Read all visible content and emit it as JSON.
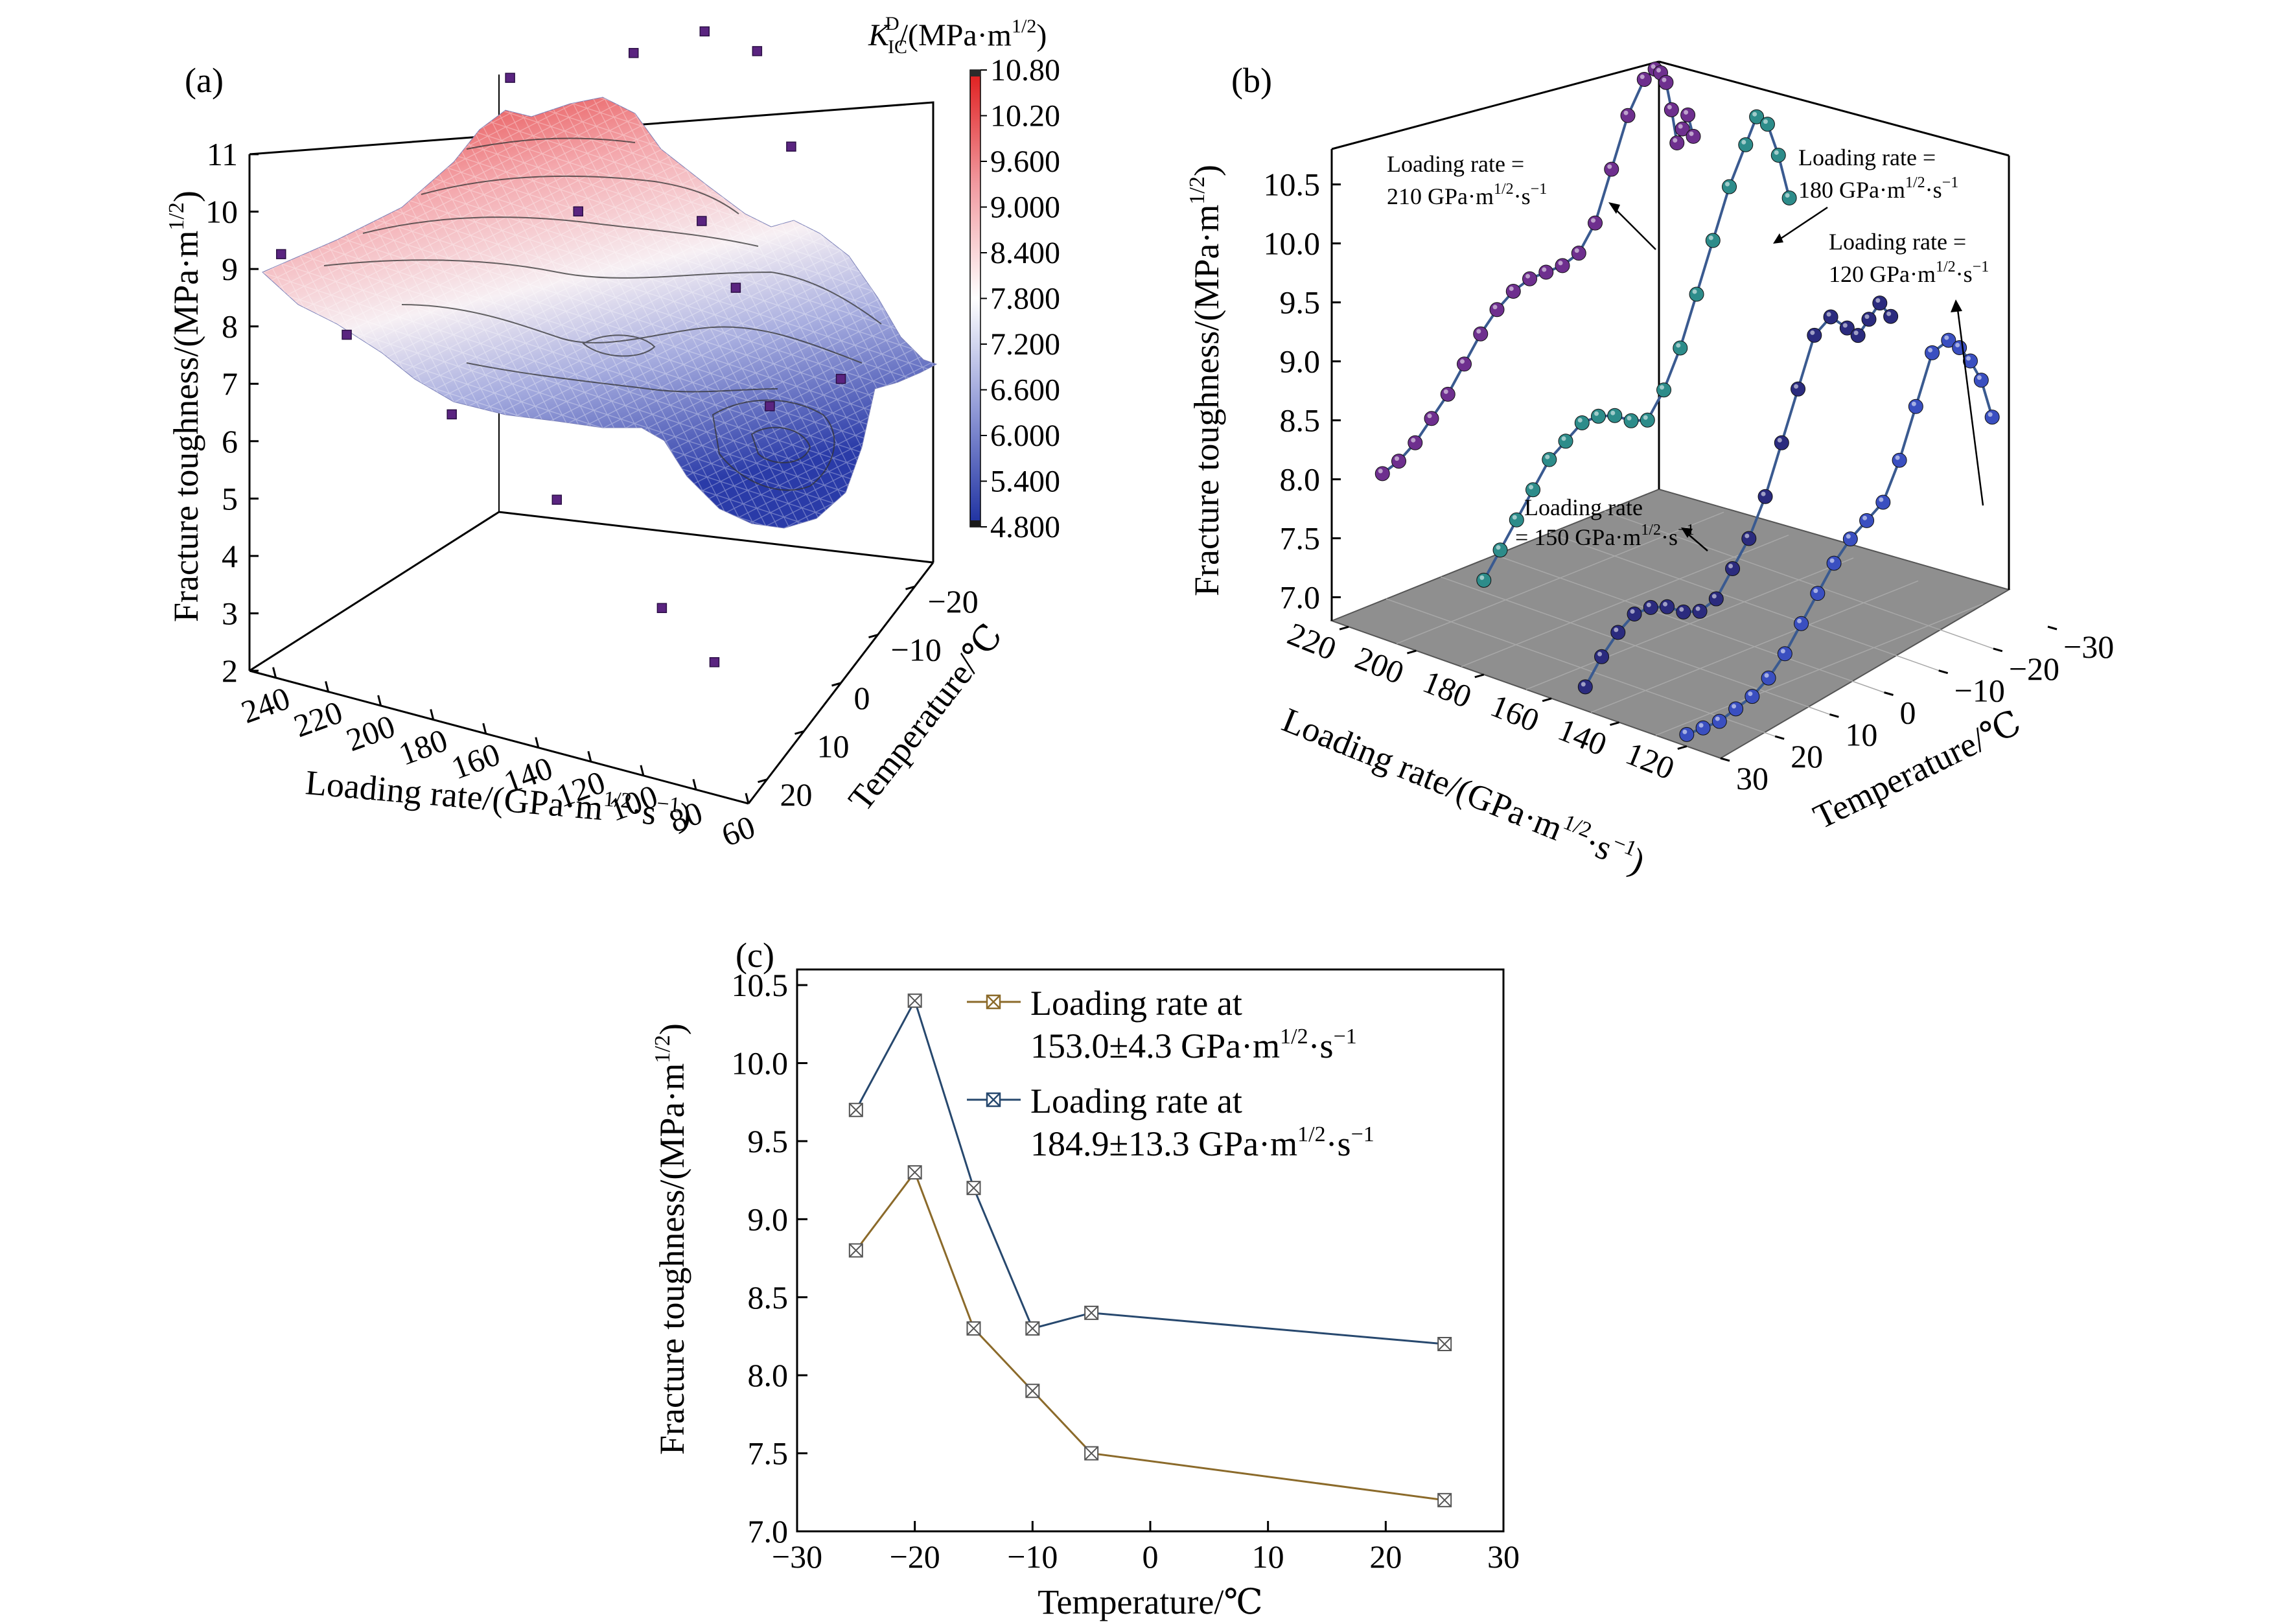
{
  "chart_data": [
    {
      "panel": "(a)",
      "type": "surface3d",
      "xlabel": "Loading rate/(GPa·m^1/2·s^−1)",
      "ylabel": "Temperature/℃",
      "zlabel": "Fracture toughness/(MPa·m^1/2)",
      "x_ticks": [
        "240",
        "220",
        "200",
        "180",
        "160",
        "140",
        "120",
        "100",
        "80",
        "60"
      ],
      "y_ticks": [
        "−20",
        "−10",
        "0",
        "10",
        "20"
      ],
      "z_ticks": [
        "2",
        "3",
        "4",
        "5",
        "6",
        "7",
        "8",
        "9",
        "10",
        "11"
      ],
      "xlim": [
        60,
        250
      ],
      "ylim": [
        -25,
        25
      ],
      "zlim": [
        2,
        11
      ],
      "colorbar": {
        "title": "K_IC^D/(MPa·m^1/2)",
        "ticks": [
          "10.80",
          "10.20",
          "9.600",
          "9.000",
          "8.400",
          "7.800",
          "7.200",
          "6.600",
          "6.000",
          "5.400",
          "4.800"
        ],
        "colors": [
          "#e02020",
          "#f6c3c6",
          "#ffffff",
          "#bfc3e6",
          "#2238a8"
        ]
      },
      "points": [
        {
          "x": 245,
          "y": 20,
          "z": 8.9
        },
        {
          "x": 220,
          "y": 20,
          "z": 7.8
        },
        {
          "x": 180,
          "y": 20,
          "z": 6.9
        },
        {
          "x": 140,
          "y": 20,
          "z": 5.9
        },
        {
          "x": 100,
          "y": 20,
          "z": 4.5
        },
        {
          "x": 80,
          "y": 20,
          "z": 3.8
        },
        {
          "x": 200,
          "y": -10,
          "z": 10.0
        },
        {
          "x": 160,
          "y": -15,
          "z": 10.5
        },
        {
          "x": 140,
          "y": -20,
          "z": 10.7
        },
        {
          "x": 120,
          "y": -20,
          "z": 10.6
        },
        {
          "x": 100,
          "y": -15,
          "z": 9.6
        },
        {
          "x": 160,
          "y": 0,
          "z": 9.0
        },
        {
          "x": 120,
          "y": -5,
          "z": 8.9
        },
        {
          "x": 100,
          "y": 0,
          "z": 8.4
        },
        {
          "x": 80,
          "y": 5,
          "z": 7.0
        },
        {
          "x": 60,
          "y": 0,
          "z": 7.3
        }
      ]
    },
    {
      "panel": "(b)",
      "type": "scatter3d",
      "xlabel": "Loading rate/(GPa·m^1/2·s^−1)",
      "ylabel": "Temperature/℃",
      "zlabel": "Fracture toughness/(MPa·m^1/2)",
      "x_ticks": [
        "220",
        "200",
        "180",
        "160",
        "140",
        "120"
      ],
      "y_ticks": [
        "−30",
        "−20",
        "−10",
        "0",
        "10",
        "20",
        "30"
      ],
      "z_ticks": [
        "7.0",
        "7.5",
        "8.0",
        "8.5",
        "9.0",
        "9.5",
        "10.0",
        "10.5"
      ],
      "xlim": [
        110,
        225
      ],
      "ylim": [
        -30,
        30
      ],
      "zlim": [
        6.8,
        10.8
      ],
      "series": [
        {
          "label": "Loading rate = 210 GPa·m^1/2·s^−1",
          "rate": 210,
          "color": "#6e2f8e",
          "temperature": [
            30,
            27,
            24,
            21,
            18,
            15,
            12,
            9,
            6,
            3,
            0,
            -3,
            -6,
            -9,
            -12,
            -15,
            -18,
            -20,
            -21,
            -22,
            -23,
            -24,
            -25,
            -26,
            -27
          ],
          "toughness": [
            8.2,
            8.25,
            8.35,
            8.5,
            8.65,
            8.85,
            9.05,
            9.2,
            9.3,
            9.35,
            9.35,
            9.35,
            9.4,
            9.6,
            10.0,
            10.4,
            10.65,
            10.7,
            10.65,
            10.55,
            10.3,
            10.0,
            10.1,
            10.2,
            10.0
          ]
        },
        {
          "label": "Loading rate = 180 GPa·m^1/2·s^−1",
          "rate": 180,
          "color": "#2d8c8a",
          "temperature": [
            30,
            27,
            24,
            21,
            18,
            15,
            12,
            9,
            6,
            3,
            0,
            -3,
            -6,
            -9,
            -12,
            -15,
            -18,
            -20,
            -22,
            -24,
            -26
          ],
          "toughness": [
            7.6,
            7.8,
            8.0,
            8.2,
            8.4,
            8.5,
            8.6,
            8.6,
            8.55,
            8.45,
            8.4,
            8.6,
            8.9,
            9.3,
            9.7,
            10.1,
            10.4,
            10.6,
            10.5,
            10.2,
            9.8
          ]
        },
        {
          "label": "Loading rate = 150 GPa·m^1/2·s^−1",
          "rate": 150,
          "color": "#2b2b7e",
          "temperature": [
            30,
            27,
            24,
            21,
            18,
            15,
            12,
            9,
            6,
            3,
            0,
            -3,
            -6,
            -9,
            -12,
            -15,
            -18,
            -20,
            -22,
            -24,
            -26
          ],
          "toughness": [
            7.0,
            7.2,
            7.35,
            7.45,
            7.45,
            7.4,
            7.3,
            7.25,
            7.3,
            7.5,
            7.7,
            8.0,
            8.4,
            8.8,
            9.2,
            9.3,
            9.15,
            9.05,
            9.15,
            9.25,
            9.1
          ]
        },
        {
          "label": "Loading rate = 120 GPa·m^1/2·s^−1",
          "rate": 120,
          "color": "#3a4fc0",
          "temperature": [
            30,
            27,
            24,
            21,
            18,
            15,
            12,
            9,
            6,
            3,
            0,
            -3,
            -6,
            -9,
            -12,
            -15,
            -18,
            -20,
            -22,
            -24,
            -26
          ],
          "toughness": [
            6.9,
            6.9,
            6.9,
            6.95,
            7.0,
            7.1,
            7.25,
            7.45,
            7.65,
            7.85,
            8.0,
            8.1,
            8.2,
            8.5,
            8.9,
            9.3,
            9.35,
            9.25,
            9.1,
            8.9,
            8.55
          ]
        }
      ]
    },
    {
      "panel": "(c)",
      "type": "line",
      "xlabel": "Temperature/℃",
      "ylabel": "Fracture toughness/(MPa·m^1/2)",
      "xlim": [
        -30,
        30
      ],
      "ylim": [
        7.0,
        10.6
      ],
      "x_ticks": [
        "−30",
        "−20",
        "−10",
        "0",
        "10",
        "20",
        "30"
      ],
      "y_ticks": [
        "7.0",
        "7.5",
        "8.0",
        "8.5",
        "9.0",
        "9.5",
        "10.0",
        "10.5"
      ],
      "legend": "top-right",
      "series": [
        {
          "name": "Loading rate at 153.0±4.3 GPa·m^1/2·s^−1",
          "color": "#8b6a2a",
          "x": [
            -25,
            -20,
            -15,
            -10,
            -5,
            25
          ],
          "y": [
            8.8,
            9.3,
            8.3,
            7.9,
            7.5,
            7.2
          ]
        },
        {
          "name": "Loading rate at 184.9±13.3 GPa·m^1/2·s^−1",
          "color": "#27486e",
          "x": [
            -25,
            -20,
            -15,
            -10,
            -5,
            25
          ],
          "y": [
            9.7,
            10.4,
            9.2,
            8.3,
            8.4,
            8.2
          ]
        }
      ]
    }
  ],
  "labels": {
    "a": "(a)",
    "b": "(b)",
    "c": "(c)",
    "a_z": "Fracture toughness/(MPa·m",
    "a_x": "Loading rate/(GPa·m",
    "a_y": "Temperature/℃",
    "b_z": "Fracture toughness/(MPa·m",
    "b_x": "Loading rate/(GPa·m",
    "b_y": "Temperature/℃",
    "c_x": "Temperature/℃",
    "c_y": "Fracture toughness/(MPa·m",
    "half": "1/2",
    "neg1": "−1",
    "close": ")",
    "s_sep": "·s",
    "cb_K": "K",
    "cb_sub": "IC",
    "cb_sup": "D",
    "cb_unit": "/(MPa·m",
    "ann1_l1": "Loading rate =",
    "ann1_l2": "210 GPa·m",
    "ann2_l1": "Loading rate =",
    "ann2_l2": "180 GPa·m",
    "ann3_l1": "Loading rate =",
    "ann3_l2": "120 GPa·m",
    "ann4_l1": "Loading rate",
    "ann4_l2": "= 150 GPa·m",
    "leg1_l1": "Loading rate at",
    "leg1_l2": "153.0±4.3 GPa·m",
    "leg2_l1": "Loading rate at",
    "leg2_l2": "184.9±13.3 GPa·m"
  }
}
